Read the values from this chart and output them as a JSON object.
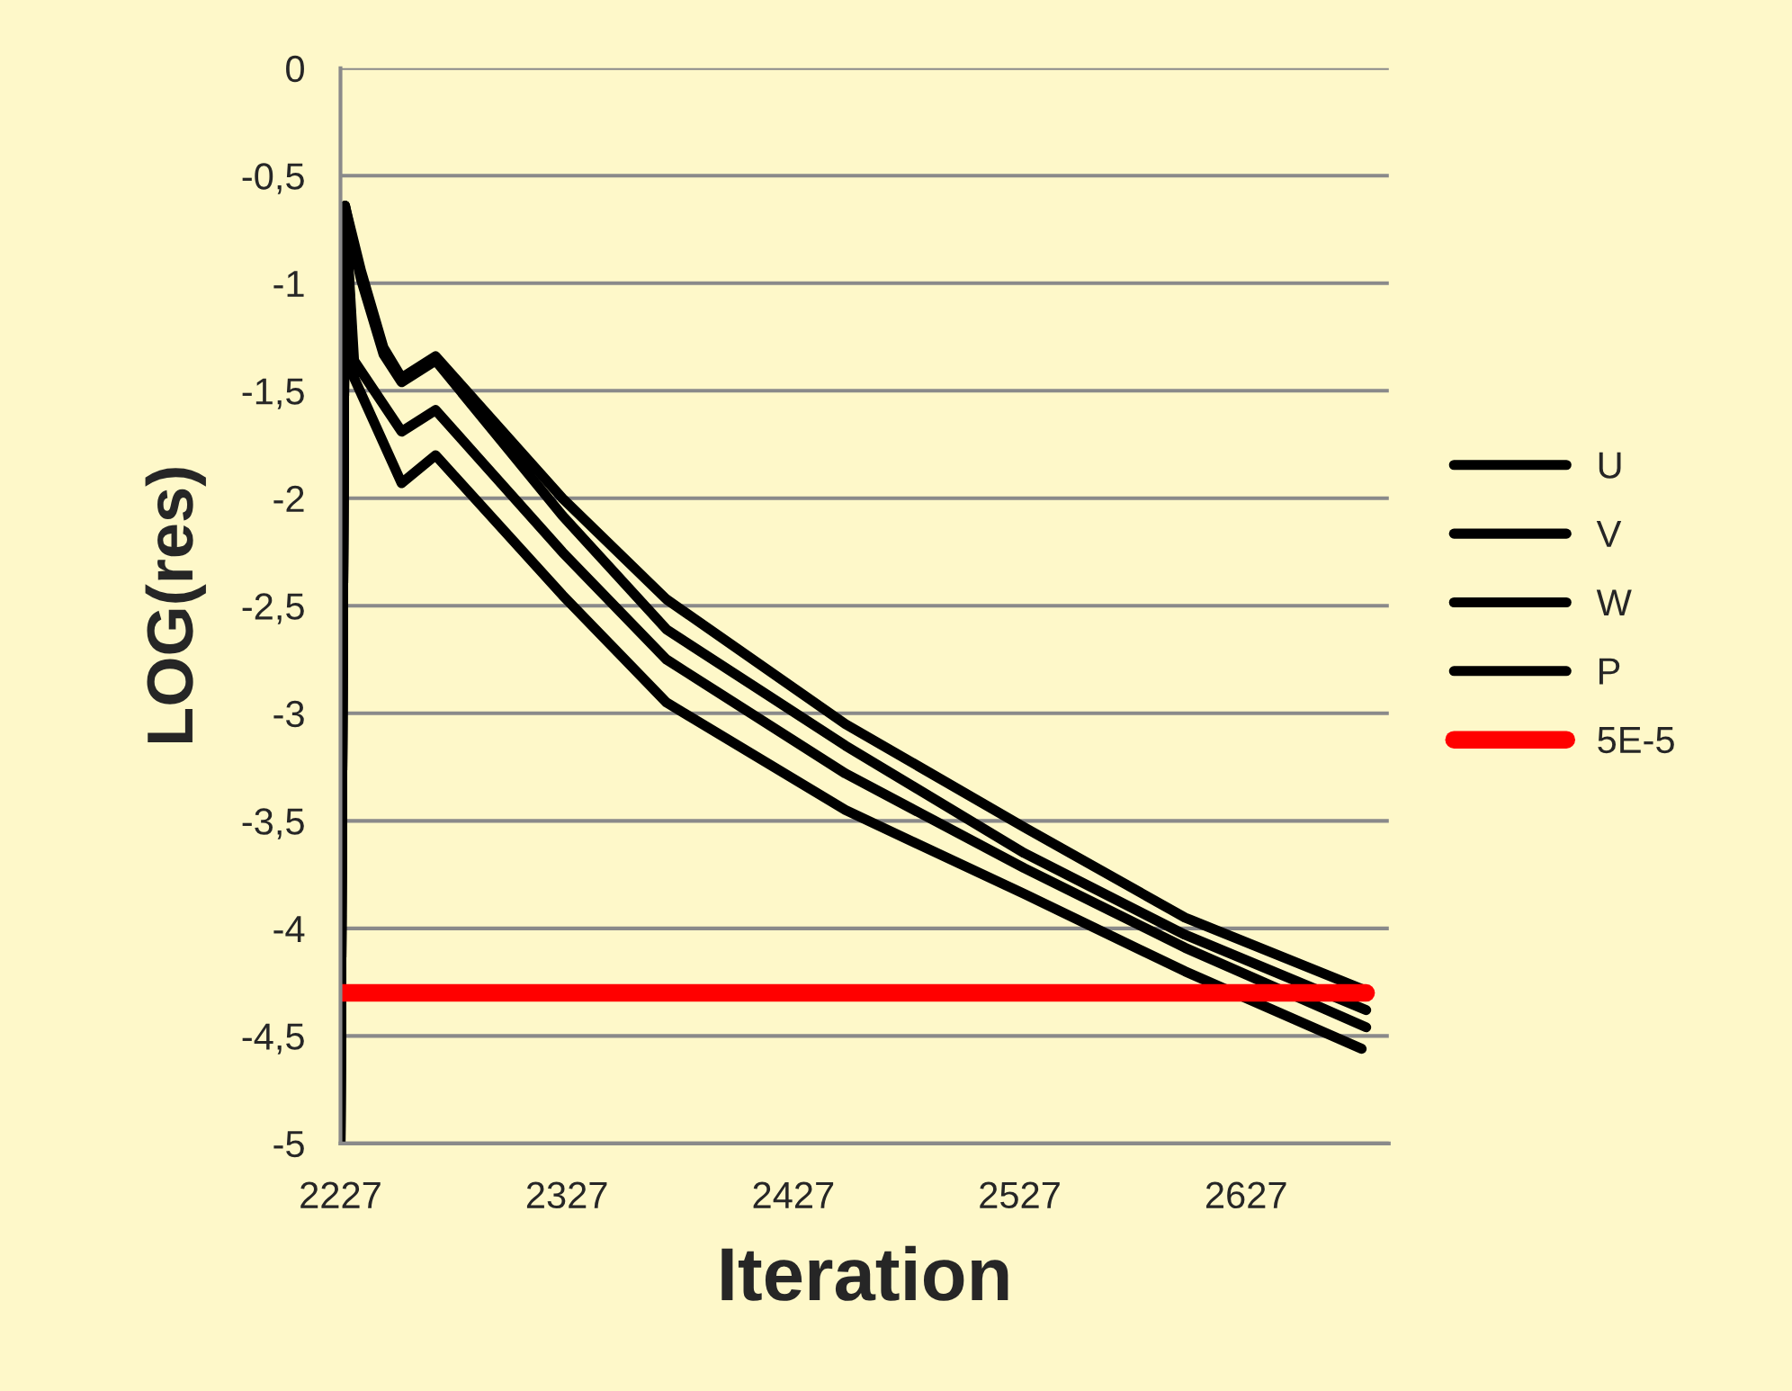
{
  "chart_data": {
    "type": "line",
    "xlabel": "Iteration",
    "ylabel": "LOG(res)",
    "xlim": [
      2227,
      2690
    ],
    "xticks": [
      2227,
      2327,
      2427,
      2527,
      2627
    ],
    "ylim": [
      -5,
      0
    ],
    "yticks": [
      0,
      {
        "value": -0.5,
        "label": "-0,5"
      },
      -1,
      {
        "value": -1.5,
        "label": "-1,5"
      },
      -2,
      {
        "value": -2.5,
        "label": "-2,5"
      },
      -3,
      {
        "value": -3.5,
        "label": "-3,5"
      },
      -4,
      {
        "value": -4.5,
        "label": "-4,5"
      },
      -5
    ],
    "grid": "y",
    "legend": "right",
    "line_style": "solid",
    "marker": "none",
    "series": [
      {
        "name": "U",
        "color": "#000000",
        "x": [
          2227,
          2229,
          2236,
          2246,
          2254,
          2269,
          2325,
          2371,
          2450,
          2529,
          2600,
          2680
        ],
        "values": [
          -5,
          -0.64,
          -0.94,
          -1.3,
          -1.44,
          -1.34,
          -2.0,
          -2.47,
          -3.05,
          -3.53,
          -3.95,
          -4.29
        ]
      },
      {
        "name": "V",
        "color": "#000000",
        "x": [
          2227,
          2229,
          2236,
          2246,
          2254,
          2269,
          2325,
          2371,
          2450,
          2529,
          2600,
          2680
        ],
        "values": [
          -5,
          -0.64,
          -0.98,
          -1.33,
          -1.46,
          -1.36,
          -2.08,
          -2.61,
          -3.15,
          -3.65,
          -4.03,
          -4.38
        ]
      },
      {
        "name": "W",
        "color": "#000000",
        "x": [
          2227,
          2229,
          2233,
          2254,
          2269,
          2325,
          2371,
          2450,
          2529,
          2600,
          2680
        ],
        "values": [
          -5,
          -0.64,
          -1.36,
          -1.69,
          -1.59,
          -2.25,
          -2.75,
          -3.28,
          -3.72,
          -4.09,
          -4.46
        ]
      },
      {
        "name": "P",
        "color": "#000000",
        "x": [
          2227,
          2229,
          2233,
          2254,
          2269,
          2325,
          2371,
          2450,
          2529,
          2600,
          2678
        ],
        "values": [
          -5,
          -0.64,
          -1.44,
          -1.93,
          -1.8,
          -2.45,
          -2.95,
          -3.45,
          -3.84,
          -4.2,
          -4.56
        ]
      },
      {
        "name": "5E-5",
        "color": "#ff0000",
        "x": [
          2227,
          2680
        ],
        "values": [
          -4.3,
          -4.3
        ]
      }
    ]
  }
}
